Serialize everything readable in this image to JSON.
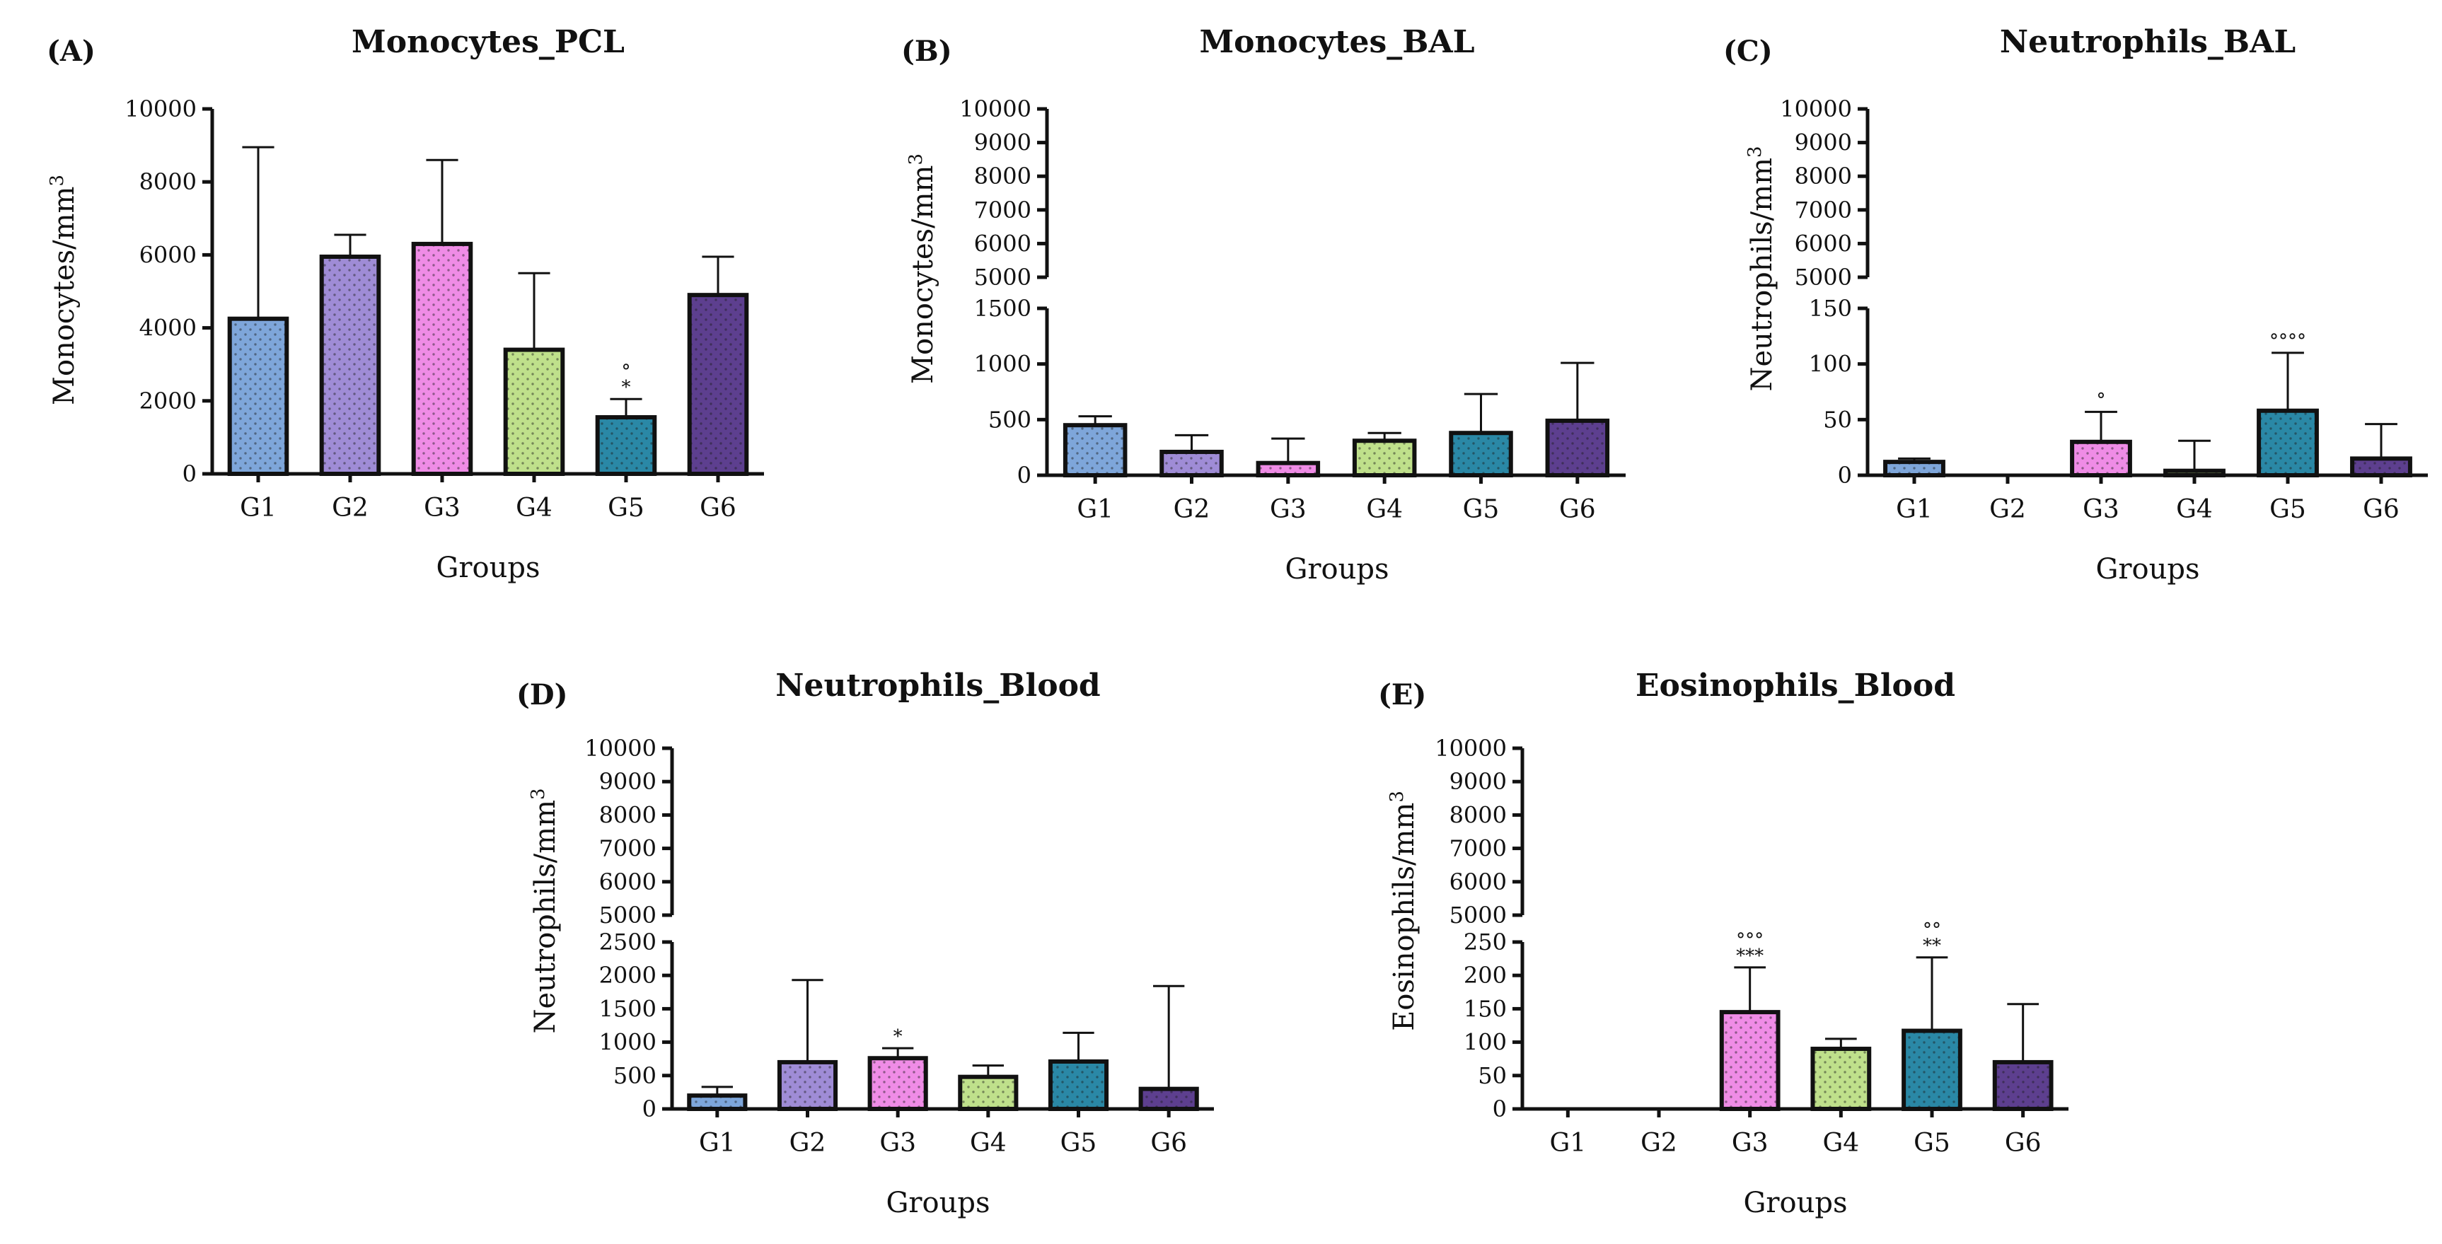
{
  "colors": {
    "G1": "#7ea6da",
    "G2": "#9f8cd6",
    "G3": "#ef8ce6",
    "G4": "#bfe08b",
    "G5": "#2a88a6",
    "G6": "#5d3f8f",
    "axis": "#111111",
    "dots": "#1a1a1a"
  },
  "chart_data": [
    {
      "id": "A",
      "panel_label": "(A)",
      "type": "bar",
      "title": "Monocytes_PCL",
      "xlabel": "Groups",
      "ylabel": "Monocytes/mm",
      "ylabel_sup": "3",
      "categories": [
        "G1",
        "G2",
        "G3",
        "G4",
        "G5",
        "G6"
      ],
      "values": [
        4250,
        5950,
        6300,
        3400,
        1550,
        4900
      ],
      "error_up": [
        4700,
        600,
        2300,
        2100,
        500,
        1050
      ],
      "significance": [
        "",
        "",
        "",
        "",
        "°\n*",
        ""
      ],
      "ylim": [
        0,
        10000
      ],
      "yticks": [
        "0",
        "2000",
        "4000",
        "6000",
        "8000",
        "10000"
      ]
    },
    {
      "id": "B",
      "panel_label": "(B)",
      "type": "bar",
      "title": "Monocytes_BAL",
      "xlabel": "Groups",
      "ylabel": "Monocytes/mm",
      "ylabel_sup": "3",
      "categories": [
        "G1",
        "G2",
        "G3",
        "G4",
        "G5",
        "G6"
      ],
      "values": [
        450,
        210,
        110,
        310,
        380,
        490
      ],
      "error_up": [
        80,
        150,
        220,
        70,
        350,
        520
      ],
      "significance": [
        "",
        "",
        "",
        "",
        "",
        ""
      ],
      "axis_break": {
        "lower": [
          0,
          1500
        ],
        "upper": [
          5000,
          10000
        ]
      },
      "yticks_lower": [
        "0",
        "500",
        "1000",
        "1500"
      ],
      "yticks_upper": [
        "5000",
        "6000",
        "7000",
        "8000",
        "9000",
        "10000"
      ]
    },
    {
      "id": "C",
      "panel_label": "(C)",
      "type": "bar",
      "title": "Neutrophils_BAL",
      "xlabel": "Groups",
      "ylabel": "Neutrophils/mm",
      "ylabel_sup": "3",
      "categories": [
        "G1",
        "G2",
        "G3",
        "G4",
        "G5",
        "G6"
      ],
      "values": [
        12,
        0,
        30,
        4,
        58,
        15
      ],
      "error_up": [
        3,
        0,
        27,
        27,
        52,
        31
      ],
      "significance": [
        "",
        "",
        "°",
        "",
        "°°°°",
        ""
      ],
      "axis_break": {
        "lower": [
          0,
          150
        ],
        "upper": [
          5000,
          10000
        ]
      },
      "yticks_lower": [
        "0",
        "50",
        "100",
        "150"
      ],
      "yticks_upper": [
        "5000",
        "6000",
        "7000",
        "8000",
        "9000",
        "10000"
      ]
    },
    {
      "id": "D",
      "panel_label": "(D)",
      "type": "bar",
      "title": "Neutrophils_Blood",
      "xlabel": "Groups",
      "ylabel": "Neutrophils/mm",
      "ylabel_sup": "3",
      "categories": [
        "G1",
        "G2",
        "G3",
        "G4",
        "G5",
        "G6"
      ],
      "values": [
        200,
        700,
        760,
        480,
        710,
        300
      ],
      "error_up": [
        130,
        1230,
        150,
        170,
        430,
        1540
      ],
      "significance": [
        "",
        "",
        "*",
        "",
        "",
        ""
      ],
      "axis_break": {
        "lower": [
          0,
          2500
        ],
        "upper": [
          5000,
          10000
        ]
      },
      "yticks_lower": [
        "0",
        "500",
        "1000",
        "1500",
        "2000",
        "2500"
      ],
      "yticks_upper": [
        "5000",
        "6000",
        "7000",
        "8000",
        "9000",
        "10000"
      ]
    },
    {
      "id": "E",
      "panel_label": "(E)",
      "type": "bar",
      "title": "Eosinophils_Blood",
      "xlabel": "Groups",
      "ylabel": "Eosinophils/mm",
      "ylabel_sup": "3",
      "categories": [
        "G1",
        "G2",
        "G3",
        "G4",
        "G5",
        "G6"
      ],
      "values": [
        0,
        0,
        145,
        90,
        117,
        70
      ],
      "error_up": [
        0,
        0,
        67,
        15,
        110,
        87
      ],
      "significance": [
        "",
        "",
        "°°°\n***",
        "",
        "°°\n**",
        ""
      ],
      "axis_break": {
        "lower": [
          0,
          250
        ],
        "upper": [
          5000,
          10000
        ]
      },
      "yticks_lower": [
        "0",
        "50",
        "100",
        "150",
        "200",
        "250"
      ],
      "yticks_upper": [
        "5000",
        "6000",
        "7000",
        "8000",
        "9000",
        "10000"
      ]
    }
  ]
}
